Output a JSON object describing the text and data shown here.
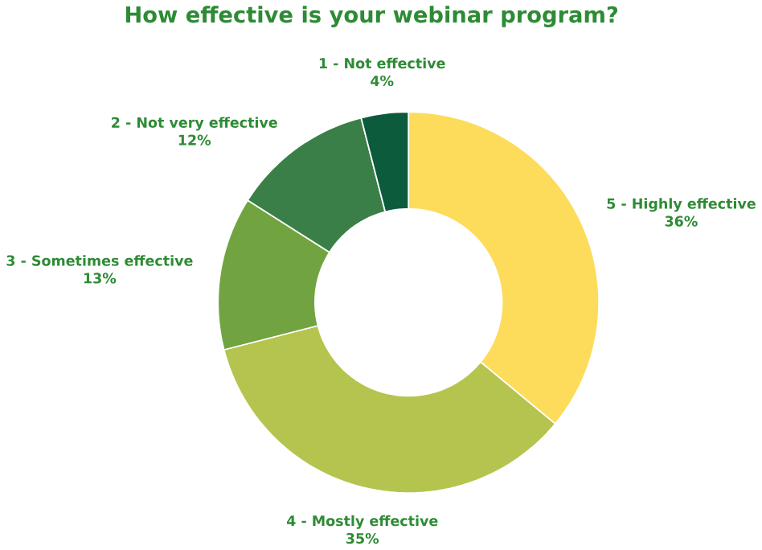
{
  "chart_data": {
    "type": "donut",
    "title": "How effective is your webinar program?",
    "categories": [
      "5 - Highly effective",
      "4 - Mostly effective",
      "3 - Sometimes effective",
      "2 - Not very effective",
      "1 - Not effective"
    ],
    "values": [
      36,
      35,
      13,
      12,
      4
    ],
    "value_labels": [
      "36%",
      "35%",
      "13%",
      "12%",
      "4%"
    ],
    "colors": [
      "#fddc5c",
      "#b5c44e",
      "#71a440",
      "#3a7f47",
      "#0c5b3c"
    ]
  }
}
